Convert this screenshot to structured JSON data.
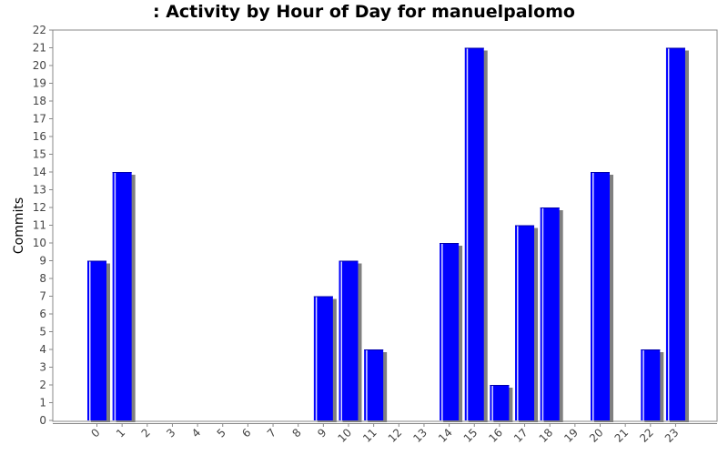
{
  "chart_data": {
    "type": "bar",
    "title": ": Activity by Hour of Day for manuelpalomo",
    "xlabel": "",
    "ylabel": "Commits",
    "ylim": [
      0,
      22
    ],
    "yticks": [
      0,
      1,
      2,
      3,
      4,
      5,
      6,
      7,
      8,
      9,
      10,
      11,
      12,
      13,
      14,
      15,
      16,
      17,
      18,
      19,
      20,
      21,
      22
    ],
    "categories": [
      "0",
      "1",
      "2",
      "3",
      "4",
      "5",
      "6",
      "7",
      "8",
      "9",
      "10",
      "11",
      "12",
      "13",
      "14",
      "15",
      "16",
      "17",
      "18",
      "19",
      "20",
      "21",
      "22",
      "23"
    ],
    "values": [
      9,
      14,
      0,
      0,
      0,
      0,
      0,
      0,
      0,
      7,
      9,
      4,
      0,
      0,
      10,
      21,
      2,
      11,
      12,
      0,
      14,
      0,
      4,
      21
    ],
    "bar_color": "#0000ff",
    "shadow_color": "#808080",
    "grid": false,
    "legend": "none"
  }
}
